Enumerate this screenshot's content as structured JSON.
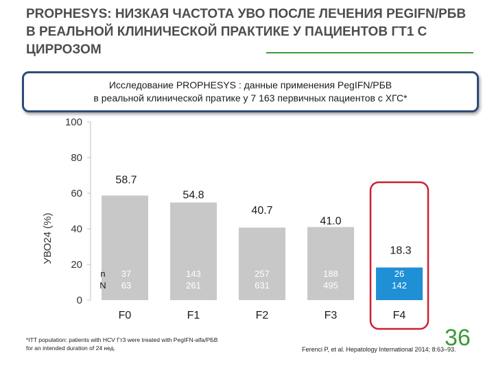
{
  "header": {
    "title": "PROPHESYS: НИЗКАЯ ЧАСТОТА УВО ПОСЛЕ ЛЕЧЕНИЯ PEGIFN/РБВ В РЕАЛЬНОЙ КЛИНИЧЕСКОЙ ПРАКТИКЕ У ПАЦИЕНТОВ ГТ1 С ЦИРРОЗОМ"
  },
  "banner": {
    "line1": "Исследование PROPHESYS : данные применения PegIFN/РБВ",
    "line2": "в реальной клинической пратике у 7 163 первичных пациентов с ХГС*"
  },
  "chart_data": {
    "type": "bar",
    "categories": [
      "F0",
      "F1",
      "F2",
      "F3",
      "F4"
    ],
    "values": [
      58.7,
      54.8,
      40.7,
      41.0,
      18.3
    ],
    "value_labels": [
      "58.7",
      "54.8",
      "40.7",
      "41.0",
      "18.3"
    ],
    "n_responders": [
      "37",
      "143",
      "257",
      "188",
      "26"
    ],
    "n_total": [
      "63",
      "261",
      "631",
      "495",
      "142"
    ],
    "n_label": "n",
    "N_label": "N",
    "ylabel": "УВО24 (%)",
    "ylim": [
      0,
      100
    ],
    "yticks": [
      "0",
      "20",
      "40",
      "60",
      "80",
      "100"
    ],
    "grid": false,
    "highlight_category": "F4",
    "colors": {
      "bar": "#c8c8c8",
      "highlight": "#1f8fd6",
      "highlight_frame": "#cc1f2f"
    }
  },
  "footnote": "*ITT population: patients with HCV Гт3 were treated with PegIFN-alfa/РБВ for an intended duration of 24 нед.",
  "reference": "Ferenci P, et al. Hepatology International 2014; 8:63–93.",
  "page_number": "36",
  "colors": {
    "accent_green": "#3a9a3a",
    "banner_border": "#2e4a7a"
  }
}
